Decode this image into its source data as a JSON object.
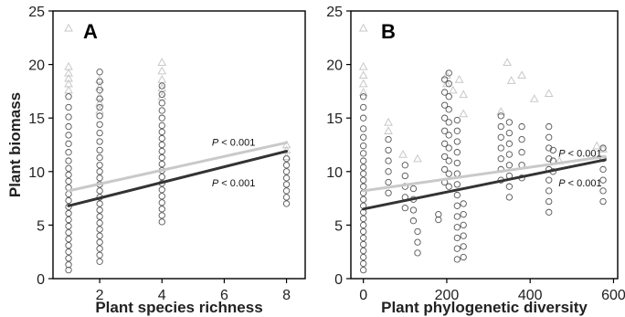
{
  "chart_data": [
    {
      "type": "scatter",
      "panel_label": "A",
      "xlabel": "Plant species richness",
      "ylabel": "Plant biomass",
      "xlim": [
        0.5,
        8.6
      ],
      "ylim": [
        0,
        25
      ],
      "xticks": [
        2,
        4,
        6,
        8
      ],
      "yticks": [
        0,
        5,
        10,
        15,
        20,
        25
      ],
      "grid": false,
      "series": [
        {
          "marker": "triangle",
          "color": "#c8c8c8",
          "points": [
            [
              1,
              23.4
            ],
            [
              1,
              19.8
            ],
            [
              1,
              19.2
            ],
            [
              1,
              18.7
            ],
            [
              1,
              18.2
            ],
            [
              1,
              17.6
            ],
            [
              2,
              18.6
            ],
            [
              2,
              17.9
            ],
            [
              2,
              17.0
            ],
            [
              2,
              16.4
            ],
            [
              2,
              15.7
            ],
            [
              4,
              20.2
            ],
            [
              4,
              19.4
            ],
            [
              4,
              18.6
            ],
            [
              4,
              17.8
            ],
            [
              4,
              17.0
            ],
            [
              8,
              12.5
            ],
            [
              8,
              12.0
            ],
            [
              8,
              11.4
            ]
          ],
          "fit": {
            "x": [
              1,
              8
            ],
            "y": [
              8.2,
              12.7
            ]
          },
          "annotation": {
            "text": "P < 0.001",
            "x": 6.3,
            "y": 12.4
          }
        },
        {
          "marker": "circle",
          "color": "#555555",
          "points": [
            [
              1,
              0.8
            ],
            [
              1,
              1.3
            ],
            [
              1,
              1.9
            ],
            [
              1,
              2.5
            ],
            [
              1,
              3.1
            ],
            [
              1,
              3.7
            ],
            [
              1,
              4.3
            ],
            [
              1,
              4.9
            ],
            [
              1,
              5.5
            ],
            [
              1,
              6.1
            ],
            [
              1,
              6.7
            ],
            [
              1,
              7.3
            ],
            [
              1,
              7.9
            ],
            [
              1,
              8.5
            ],
            [
              1,
              9.1
            ],
            [
              1,
              9.7
            ],
            [
              1,
              10.3
            ],
            [
              1,
              11.0
            ],
            [
              1,
              11.8
            ],
            [
              1,
              12.6
            ],
            [
              1,
              13.4
            ],
            [
              1,
              14.2
            ],
            [
              1,
              15.1
            ],
            [
              1,
              16.0
            ],
            [
              1,
              17.0
            ],
            [
              2,
              1.6
            ],
            [
              2,
              2.2
            ],
            [
              2,
              2.8
            ],
            [
              2,
              3.4
            ],
            [
              2,
              4.0
            ],
            [
              2,
              4.6
            ],
            [
              2,
              5.2
            ],
            [
              2,
              5.8
            ],
            [
              2,
              6.4
            ],
            [
              2,
              7.0
            ],
            [
              2,
              7.6
            ],
            [
              2,
              8.2
            ],
            [
              2,
              8.8
            ],
            [
              2,
              9.4
            ],
            [
              2,
              10.0
            ],
            [
              2,
              10.6
            ],
            [
              2,
              11.3
            ],
            [
              2,
              12.0
            ],
            [
              2,
              12.8
            ],
            [
              2,
              13.6
            ],
            [
              2,
              14.4
            ],
            [
              2,
              15.2
            ],
            [
              2,
              16.0
            ],
            [
              2,
              16.8
            ],
            [
              2,
              17.6
            ],
            [
              2,
              18.4
            ],
            [
              2,
              19.3
            ],
            [
              4,
              5.3
            ],
            [
              4,
              5.9
            ],
            [
              4,
              6.5
            ],
            [
              4,
              7.1
            ],
            [
              4,
              7.7
            ],
            [
              4,
              8.3
            ],
            [
              4,
              8.9
            ],
            [
              4,
              9.5
            ],
            [
              4,
              10.1
            ],
            [
              4,
              10.7
            ],
            [
              4,
              11.3
            ],
            [
              4,
              11.9
            ],
            [
              4,
              12.5
            ],
            [
              4,
              13.1
            ],
            [
              4,
              13.7
            ],
            [
              4,
              14.3
            ],
            [
              4,
              15.0
            ],
            [
              4,
              15.7
            ],
            [
              4,
              16.4
            ],
            [
              4,
              17.2
            ],
            [
              4,
              18.0
            ],
            [
              8,
              7.0
            ],
            [
              8,
              7.6
            ],
            [
              8,
              8.2
            ],
            [
              8,
              8.8
            ],
            [
              8,
              9.4
            ],
            [
              8,
              10.0
            ],
            [
              8,
              10.6
            ],
            [
              8,
              11.2
            ]
          ],
          "fit": {
            "x": [
              1,
              8
            ],
            "y": [
              6.8,
              11.9
            ]
          },
          "annotation": {
            "text": "P < 0.001",
            "x": 6.3,
            "y": 8.6
          }
        }
      ]
    },
    {
      "type": "scatter",
      "panel_label": "B",
      "xlabel": "Plant phylogenetic diversity",
      "ylabel": "",
      "xlim": [
        -30,
        610
      ],
      "ylim": [
        0,
        25
      ],
      "xticks": [
        0,
        200,
        400,
        600
      ],
      "yticks": [
        0,
        5,
        10,
        15,
        20,
        25
      ],
      "grid": false,
      "series": [
        {
          "marker": "triangle",
          "color": "#c8c8c8",
          "points": [
            [
              0,
              23.4
            ],
            [
              0,
              19.8
            ],
            [
              0,
              19.0
            ],
            [
              0,
              18.2
            ],
            [
              0,
              17.4
            ],
            [
              60,
              14.6
            ],
            [
              60,
              13.8
            ],
            [
              95,
              11.6
            ],
            [
              130,
              11.2
            ],
            [
              200,
              19.0
            ],
            [
              200,
              18.2
            ],
            [
              215,
              17.6
            ],
            [
              230,
              18.6
            ],
            [
              240,
              17.2
            ],
            [
              240,
              15.4
            ],
            [
              330,
              15.6
            ],
            [
              345,
              20.2
            ],
            [
              355,
              18.5
            ],
            [
              380,
              19.0
            ],
            [
              410,
              16.8
            ],
            [
              445,
              17.3
            ],
            [
              470,
              11.0
            ],
            [
              560,
              12.4
            ],
            [
              575,
              12.1
            ]
          ],
          "fit": {
            "x": [
              0,
              580
            ],
            "y": [
              8.2,
              11.4
            ]
          },
          "annotation": {
            "text": "P < 0.001",
            "x": 520,
            "y": 11.4
          }
        },
        {
          "marker": "circle",
          "color": "#555555",
          "points": [
            [
              0,
              0.8
            ],
            [
              0,
              1.4
            ],
            [
              0,
              2.0
            ],
            [
              0,
              2.6
            ],
            [
              0,
              3.2
            ],
            [
              0,
              3.8
            ],
            [
              0,
              4.4
            ],
            [
              0,
              5.0
            ],
            [
              0,
              5.6
            ],
            [
              0,
              6.2
            ],
            [
              0,
              6.8
            ],
            [
              0,
              7.4
            ],
            [
              0,
              8.0
            ],
            [
              0,
              8.6
            ],
            [
              0,
              9.2
            ],
            [
              0,
              9.8
            ],
            [
              0,
              10.4
            ],
            [
              0,
              11.0
            ],
            [
              0,
              11.7
            ],
            [
              0,
              12.4
            ],
            [
              0,
              13.2
            ],
            [
              0,
              14.0
            ],
            [
              0,
              15.0
            ],
            [
              0,
              16.0
            ],
            [
              0,
              17.0
            ],
            [
              60,
              8.0
            ],
            [
              60,
              9.0
            ],
            [
              60,
              10.0
            ],
            [
              60,
              11.0
            ],
            [
              60,
              12.0
            ],
            [
              60,
              13.0
            ],
            [
              100,
              6.6
            ],
            [
              100,
              7.6
            ],
            [
              100,
              8.6
            ],
            [
              100,
              9.6
            ],
            [
              100,
              10.6
            ],
            [
              120,
              5.4
            ],
            [
              120,
              6.4
            ],
            [
              120,
              7.4
            ],
            [
              120,
              8.4
            ],
            [
              130,
              2.4
            ],
            [
              130,
              3.4
            ],
            [
              130,
              4.4
            ],
            [
              180,
              5.5
            ],
            [
              180,
              6.0
            ],
            [
              195,
              9.0
            ],
            [
              195,
              10.2
            ],
            [
              195,
              11.4
            ],
            [
              195,
              12.6
            ],
            [
              195,
              13.8
            ],
            [
              195,
              15.0
            ],
            [
              195,
              16.2
            ],
            [
              195,
              17.4
            ],
            [
              195,
              18.6
            ],
            [
              205,
              8.6
            ],
            [
              205,
              9.8
            ],
            [
              205,
              11.0
            ],
            [
              205,
              12.2
            ],
            [
              205,
              13.4
            ],
            [
              205,
              14.6
            ],
            [
              205,
              15.8
            ],
            [
              205,
              17.0
            ],
            [
              205,
              18.2
            ],
            [
              205,
              19.2
            ],
            [
              225,
              1.8
            ],
            [
              225,
              2.8
            ],
            [
              225,
              3.8
            ],
            [
              225,
              4.8
            ],
            [
              225,
              5.8
            ],
            [
              225,
              6.8
            ],
            [
              225,
              7.8
            ],
            [
              225,
              8.8
            ],
            [
              225,
              9.8
            ],
            [
              225,
              10.8
            ],
            [
              225,
              11.8
            ],
            [
              225,
              12.8
            ],
            [
              225,
              13.8
            ],
            [
              225,
              14.8
            ],
            [
              240,
              2.0
            ],
            [
              240,
              3.0
            ],
            [
              240,
              4.0
            ],
            [
              240,
              5.0
            ],
            [
              240,
              6.0
            ],
            [
              240,
              7.0
            ],
            [
              330,
              9.2
            ],
            [
              330,
              10.2
            ],
            [
              330,
              11.2
            ],
            [
              330,
              12.2
            ],
            [
              330,
              13.2
            ],
            [
              330,
              14.2
            ],
            [
              330,
              15.2
            ],
            [
              350,
              7.6
            ],
            [
              350,
              8.6
            ],
            [
              350,
              9.6
            ],
            [
              350,
              10.6
            ],
            [
              350,
              11.6
            ],
            [
              350,
              12.6
            ],
            [
              350,
              13.6
            ],
            [
              350,
              14.6
            ],
            [
              380,
              9.4
            ],
            [
              380,
              10.6
            ],
            [
              380,
              11.8
            ],
            [
              380,
              13.0
            ],
            [
              380,
              14.2
            ],
            [
              445,
              6.2
            ],
            [
              445,
              7.2
            ],
            [
              445,
              8.2
            ],
            [
              445,
              9.2
            ],
            [
              445,
              10.2
            ],
            [
              445,
              11.2
            ],
            [
              445,
              12.2
            ],
            [
              445,
              13.2
            ],
            [
              445,
              14.2
            ],
            [
              455,
              10.0
            ],
            [
              455,
              11.0
            ],
            [
              455,
              12.0
            ],
            [
              575,
              7.2
            ],
            [
              575,
              8.2
            ],
            [
              575,
              9.2
            ],
            [
              575,
              10.2
            ],
            [
              575,
              11.2
            ],
            [
              575,
              12.2
            ]
          ],
          "fit": {
            "x": [
              0,
              580
            ],
            "y": [
              6.5,
              11.1
            ]
          },
          "annotation": {
            "text": "P < 0.001",
            "x": 520,
            "y": 8.6
          }
        }
      ]
    }
  ]
}
